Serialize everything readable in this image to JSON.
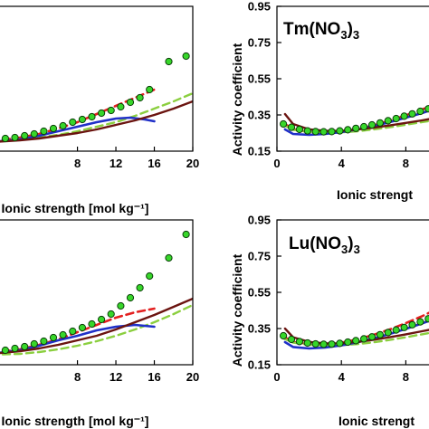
{
  "colors": {
    "points_fill": "#37d62a",
    "points_stroke": "#0a3d08",
    "red": "#e32020",
    "light_green": "#8bcf3f",
    "blue": "#2030c8",
    "brown": "#6b1410"
  },
  "chart_data": [
    {
      "id": "top-left",
      "type": "line",
      "title": "",
      "xlabel": "Ionic strength [mol kg⁻¹]",
      "ylabel": "",
      "xlim": [
        -1,
        20
      ],
      "ylim": [
        0.15,
        0.95
      ],
      "xticks": [
        8,
        12,
        16,
        20
      ],
      "xtick_labels": [
        "8",
        "12",
        "16",
        "20"
      ],
      "yticks": [],
      "ytick_labels": [],
      "grid": false,
      "points": {
        "x": [
          0.5,
          1.5,
          2.5,
          3.5,
          4.5,
          5.5,
          6.5,
          7.5,
          8.5,
          9.5,
          10.5,
          11.5,
          12.5,
          13.5,
          14.5,
          15.5,
          17.5,
          19.3
        ],
        "y": [
          0.22,
          0.225,
          0.235,
          0.245,
          0.26,
          0.275,
          0.29,
          0.31,
          0.325,
          0.34,
          0.36,
          0.375,
          0.395,
          0.42,
          0.445,
          0.49,
          0.645,
          0.675
        ]
      },
      "series": [
        {
          "style": "red-dashed",
          "x": [
            -1,
            2,
            4,
            6,
            8,
            10,
            12,
            14,
            16
          ],
          "y": [
            0.205,
            0.225,
            0.245,
            0.275,
            0.31,
            0.355,
            0.4,
            0.445,
            0.49
          ]
        },
        {
          "style": "green-dashed",
          "x": [
            -1,
            2,
            4,
            6,
            8,
            10,
            12,
            14,
            16,
            18,
            20
          ],
          "y": [
            0.2,
            0.215,
            0.225,
            0.24,
            0.26,
            0.285,
            0.31,
            0.345,
            0.385,
            0.425,
            0.47
          ]
        },
        {
          "style": "blue-solid",
          "x": [
            -1,
            2,
            4,
            6,
            8,
            10,
            12,
            13.5,
            15,
            16
          ],
          "y": [
            0.2,
            0.215,
            0.235,
            0.26,
            0.285,
            0.31,
            0.33,
            0.335,
            0.325,
            0.315
          ]
        },
        {
          "style": "brown-solid",
          "x": [
            -1,
            2,
            4,
            6,
            8,
            10,
            12,
            14,
            16,
            18,
            20
          ],
          "y": [
            0.2,
            0.21,
            0.22,
            0.235,
            0.25,
            0.27,
            0.295,
            0.32,
            0.35,
            0.385,
            0.425
          ]
        }
      ]
    },
    {
      "id": "top-right",
      "type": "line",
      "title": "Tm(NO₃)₃",
      "xlabel": "Ionic strengt",
      "ylabel": "Activity coefficient",
      "xlim": [
        0,
        10
      ],
      "ylim": [
        0.15,
        0.95
      ],
      "xticks": [
        0,
        4,
        8
      ],
      "xtick_labels": [
        "0",
        "4",
        "8"
      ],
      "yticks": [
        0.15,
        0.35,
        0.55,
        0.75,
        0.95
      ],
      "ytick_labels": [
        "0.15",
        "0.35",
        "0.55",
        "0.75",
        "0.95"
      ],
      "grid": false,
      "points": {
        "x": [
          0.4,
          0.9,
          1.4,
          1.9,
          2.4,
          2.9,
          3.4,
          3.9,
          4.4,
          4.9,
          5.4,
          5.9,
          6.4,
          6.9,
          7.4,
          7.9,
          8.4,
          8.9,
          9.4,
          9.9
        ],
        "y": [
          0.3,
          0.282,
          0.27,
          0.262,
          0.258,
          0.257,
          0.258,
          0.262,
          0.268,
          0.276,
          0.285,
          0.295,
          0.306,
          0.318,
          0.33,
          0.343,
          0.356,
          0.37,
          0.384,
          0.4
        ]
      },
      "series": [
        {
          "style": "red-dashed",
          "x": [
            0.3,
            1,
            2,
            3,
            4,
            5,
            6,
            7,
            8,
            9,
            10
          ],
          "y": [
            0.31,
            0.272,
            0.255,
            0.252,
            0.258,
            0.272,
            0.292,
            0.318,
            0.348,
            0.38,
            0.415
          ]
        },
        {
          "style": "green-dashed",
          "x": [
            0.3,
            1,
            2,
            3,
            4,
            5,
            6,
            7,
            8,
            9,
            10
          ],
          "y": [
            0.3,
            0.268,
            0.255,
            0.252,
            0.254,
            0.26,
            0.27,
            0.282,
            0.296,
            0.31,
            0.324
          ]
        },
        {
          "style": "blue-solid",
          "x": [
            0.5,
            1,
            2,
            3,
            4,
            5,
            6,
            7,
            8,
            9,
            10
          ],
          "y": [
            0.27,
            0.245,
            0.24,
            0.245,
            0.255,
            0.27,
            0.288,
            0.31,
            0.335,
            0.36,
            0.39
          ]
        },
        {
          "style": "brown-solid",
          "x": [
            0.5,
            1,
            2,
            3,
            4,
            5,
            6,
            7,
            8,
            9,
            10
          ],
          "y": [
            0.355,
            0.3,
            0.27,
            0.262,
            0.262,
            0.27,
            0.28,
            0.292,
            0.306,
            0.32,
            0.336
          ]
        }
      ]
    },
    {
      "id": "bottom-left",
      "type": "line",
      "title": "",
      "xlabel": "Ionic strength [mol kg⁻¹]",
      "ylabel": "",
      "xlim": [
        -1,
        20
      ],
      "ylim": [
        0.15,
        0.95
      ],
      "xticks": [
        8,
        12,
        16,
        20
      ],
      "xtick_labels": [
        "8",
        "12",
        "16",
        "20"
      ],
      "yticks": [],
      "ytick_labels": [],
      "grid": false,
      "points": {
        "x": [
          0.5,
          1.5,
          2.5,
          3.5,
          4.5,
          5.5,
          6.5,
          7.5,
          8.5,
          9.5,
          10.5,
          11.5,
          12.5,
          13.5,
          14.5,
          15.5,
          17.5,
          19.3
        ],
        "y": [
          0.23,
          0.24,
          0.25,
          0.265,
          0.28,
          0.3,
          0.315,
          0.335,
          0.355,
          0.375,
          0.4,
          0.43,
          0.475,
          0.52,
          0.575,
          0.64,
          0.74,
          0.87
        ]
      },
      "series": [
        {
          "style": "red-dashed",
          "x": [
            -1,
            2,
            4,
            6,
            8,
            10,
            12,
            14,
            16
          ],
          "y": [
            0.215,
            0.235,
            0.26,
            0.29,
            0.33,
            0.37,
            0.41,
            0.44,
            0.46
          ]
        },
        {
          "style": "green-dashed",
          "x": [
            -1,
            2,
            4,
            6,
            8,
            10,
            12,
            14,
            16,
            18,
            20
          ],
          "y": [
            0.205,
            0.21,
            0.22,
            0.235,
            0.255,
            0.28,
            0.31,
            0.345,
            0.385,
            0.43,
            0.48
          ]
        },
        {
          "style": "blue-solid",
          "x": [
            -1,
            2,
            4,
            6,
            8,
            10,
            12,
            14,
            15,
            16
          ],
          "y": [
            0.21,
            0.23,
            0.255,
            0.285,
            0.31,
            0.34,
            0.36,
            0.37,
            0.365,
            0.36
          ]
        },
        {
          "style": "brown-solid",
          "x": [
            -1,
            2,
            4,
            6,
            8,
            10,
            12,
            14,
            16,
            18,
            20
          ],
          "y": [
            0.21,
            0.225,
            0.24,
            0.26,
            0.285,
            0.31,
            0.345,
            0.385,
            0.425,
            0.47,
            0.515
          ]
        }
      ]
    },
    {
      "id": "bottom-right",
      "type": "line",
      "title": "Lu(NO₃)₃",
      "xlabel": "Ionic strengt",
      "ylabel": "Activity coefficient",
      "xlim": [
        0,
        10
      ],
      "ylim": [
        0.15,
        0.95
      ],
      "xticks": [
        0,
        4,
        8
      ],
      "xtick_labels": [
        "0",
        "4",
        "8"
      ],
      "yticks": [
        0.15,
        0.35,
        0.55,
        0.75,
        0.95
      ],
      "ytick_labels": [
        "0.15",
        "0.35",
        "0.55",
        "0.75",
        "0.95"
      ],
      "grid": false,
      "points": {
        "x": [
          0.4,
          0.9,
          1.4,
          1.9,
          2.4,
          2.9,
          3.4,
          3.9,
          4.4,
          4.9,
          5.4,
          5.9,
          6.4,
          6.9,
          7.4,
          7.9,
          8.4,
          8.9,
          9.4,
          9.9
        ],
        "y": [
          0.31,
          0.29,
          0.278,
          0.27,
          0.265,
          0.263,
          0.264,
          0.268,
          0.275,
          0.283,
          0.293,
          0.304,
          0.316,
          0.328,
          0.342,
          0.356,
          0.371,
          0.387,
          0.404,
          0.42
        ]
      },
      "series": [
        {
          "style": "red-dashed",
          "x": [
            0.3,
            1,
            2,
            3,
            4,
            5,
            6,
            7,
            8,
            9,
            10
          ],
          "y": [
            0.31,
            0.276,
            0.262,
            0.262,
            0.272,
            0.29,
            0.315,
            0.345,
            0.38,
            0.418,
            0.46
          ]
        },
        {
          "style": "green-dashed",
          "x": [
            0.3,
            1,
            2,
            3,
            4,
            5,
            6,
            7,
            8,
            9,
            10
          ],
          "y": [
            0.3,
            0.272,
            0.26,
            0.257,
            0.258,
            0.264,
            0.274,
            0.287,
            0.302,
            0.318,
            0.334
          ]
        },
        {
          "style": "blue-solid",
          "x": [
            0.5,
            1,
            2,
            3,
            4,
            5,
            6,
            7,
            8,
            9,
            10
          ],
          "y": [
            0.275,
            0.248,
            0.24,
            0.245,
            0.257,
            0.274,
            0.295,
            0.32,
            0.348,
            0.378,
            0.41
          ]
        },
        {
          "style": "brown-solid",
          "x": [
            0.5,
            1,
            2,
            3,
            4,
            5,
            6,
            7,
            8,
            9,
            10
          ],
          "y": [
            0.35,
            0.302,
            0.276,
            0.268,
            0.268,
            0.276,
            0.288,
            0.302,
            0.318,
            0.335,
            0.352
          ]
        }
      ]
    }
  ]
}
